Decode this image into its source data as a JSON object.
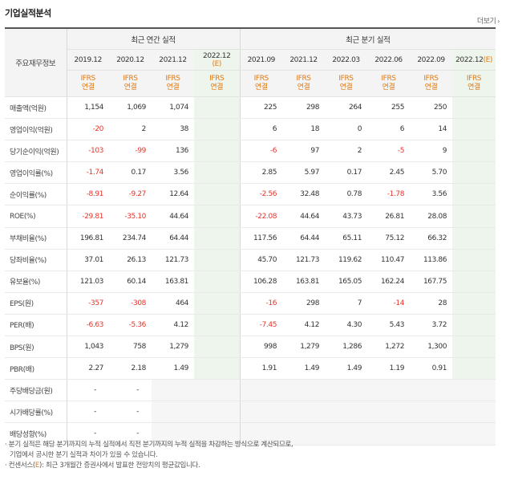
{
  "title": "기업실적분석",
  "more_label": "더보기",
  "header": {
    "row_label": "주요재무정보",
    "annual_group": "최근 연간 실적",
    "quarter_group": "최근 분기 실적",
    "annual_periods": [
      "2019.12",
      "2020.12",
      "2021.12",
      "2022.12"
    ],
    "annual_estimate_mark": "(E)",
    "quarter_periods": [
      "2021.09",
      "2021.12",
      "2022.03",
      "2022.06",
      "2022.09",
      "2022.12"
    ],
    "quarter_estimate_mark": "(E)",
    "basis_top": "IFRS",
    "basis_bottom": "연결"
  },
  "rows": [
    {
      "name": "매출액(억원)",
      "annual": [
        "1,154",
        "1,069",
        "1,074",
        ""
      ],
      "quarter": [
        "225",
        "298",
        "264",
        "255",
        "250",
        ""
      ]
    },
    {
      "name": "영업이익(억원)",
      "annual": [
        "-20",
        "2",
        "38",
        ""
      ],
      "quarter": [
        "6",
        "18",
        "0",
        "6",
        "14",
        ""
      ]
    },
    {
      "name": "당기순이익(억원)",
      "annual": [
        "-103",
        "-99",
        "136",
        ""
      ],
      "quarter": [
        "-6",
        "97",
        "2",
        "-5",
        "9",
        ""
      ]
    },
    {
      "name": "영업이익률(%)",
      "annual": [
        "-1.74",
        "0.17",
        "3.56",
        ""
      ],
      "quarter": [
        "2.85",
        "5.97",
        "0.17",
        "2.45",
        "5.70",
        ""
      ]
    },
    {
      "name": "순이익률(%)",
      "annual": [
        "-8.91",
        "-9.27",
        "12.64",
        ""
      ],
      "quarter": [
        "-2.56",
        "32.48",
        "0.78",
        "-1.78",
        "3.56",
        ""
      ]
    },
    {
      "name": "ROE(%)",
      "annual": [
        "-29.81",
        "-35.10",
        "44.64",
        ""
      ],
      "quarter": [
        "-22.08",
        "44.64",
        "43.73",
        "26.81",
        "28.08",
        ""
      ]
    },
    {
      "name": "부채비율(%)",
      "annual": [
        "196.81",
        "234.74",
        "64.44",
        ""
      ],
      "quarter": [
        "117.56",
        "64.44",
        "65.11",
        "75.12",
        "66.32",
        ""
      ]
    },
    {
      "name": "당좌비율(%)",
      "annual": [
        "37.01",
        "26.13",
        "121.73",
        ""
      ],
      "quarter": [
        "45.70",
        "121.73",
        "119.62",
        "110.47",
        "113.86",
        ""
      ]
    },
    {
      "name": "유보율(%)",
      "annual": [
        "121.03",
        "60.14",
        "163.81",
        ""
      ],
      "quarter": [
        "106.28",
        "163.81",
        "165.05",
        "162.24",
        "167.75",
        ""
      ]
    },
    {
      "name": "EPS(원)",
      "annual": [
        "-357",
        "-308",
        "464",
        ""
      ],
      "quarter": [
        "-16",
        "298",
        "7",
        "-14",
        "28",
        ""
      ]
    },
    {
      "name": "PER(배)",
      "annual": [
        "-6.63",
        "-5.36",
        "4.12",
        ""
      ],
      "quarter": [
        "-7.45",
        "4.12",
        "4.30",
        "5.43",
        "3.72",
        ""
      ]
    },
    {
      "name": "BPS(원)",
      "annual": [
        "1,043",
        "758",
        "1,279",
        ""
      ],
      "quarter": [
        "998",
        "1,279",
        "1,286",
        "1,272",
        "1,300",
        ""
      ]
    },
    {
      "name": "PBR(배)",
      "annual": [
        "2.27",
        "2.18",
        "1.49",
        ""
      ],
      "quarter": [
        "1.91",
        "1.49",
        "1.49",
        "1.19",
        "0.91",
        ""
      ]
    },
    {
      "name": "주당배당금(원)",
      "annual": [
        "-",
        "-",
        "",
        ""
      ],
      "quarter": [
        "",
        "",
        "",
        "",
        "",
        ""
      ]
    },
    {
      "name": "시가배당률(%)",
      "annual": [
        "-",
        "-",
        "",
        ""
      ],
      "quarter": [
        "",
        "",
        "",
        "",
        "",
        ""
      ]
    },
    {
      "name": "배당성향(%)",
      "annual": [
        "-",
        "-",
        "",
        ""
      ],
      "quarter": [
        "",
        "",
        "",
        "",
        "",
        ""
      ]
    }
  ],
  "notes": {
    "line1": "· 분기 실적은 해당 분기까지의 누적 실적에서 직전 분기까지의 누적 실적을 차감하는 방식으로 계산되므로,",
    "line2": "기업에서 공시한 분기 실적과 차이가 있을 수 있습니다.",
    "line3_pre": "· 컨센서스(",
    "line3_e": "E",
    "line3_post": "): 최근 3개월간 증권사에서 발표한 전망치의 평균값입니다."
  }
}
